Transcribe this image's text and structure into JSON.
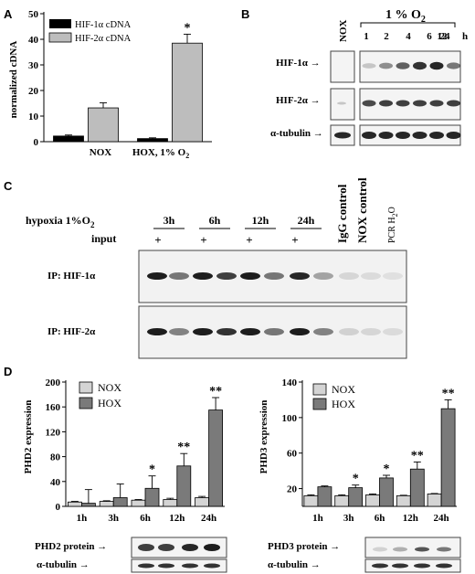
{
  "panelA": {
    "label": "A",
    "ylabel": "normalized cDNA",
    "legend": [
      "HIF-1α cDNA",
      "HIF-2α cDNA"
    ],
    "colors": {
      "hif1": "#000000",
      "hif2": "#bdbdbd"
    },
    "significance": "*"
  },
  "panelB": {
    "label": "B",
    "nox": "NOX",
    "condition": "1 % O",
    "condition_sub": "2",
    "timepoints": [
      "1",
      "2",
      "4",
      "6",
      "12",
      "24"
    ],
    "unit": "h",
    "rows": [
      "HIF-1α →",
      "HIF-2α →",
      "α-tubulin →"
    ],
    "intensity_hif1": [
      0.2,
      0.45,
      0.65,
      0.85,
      0.9,
      0.55
    ],
    "intensity_hif2": [
      0.75,
      0.8,
      0.8,
      0.8,
      0.8,
      0.8
    ],
    "intensity_tub": [
      0.9,
      0.9,
      0.9,
      0.9,
      0.9,
      0.9
    ]
  },
  "panelC": {
    "label": "C",
    "hypoxia": "hypoxia 1%O",
    "hypoxia_sub": "2",
    "times": [
      "3h",
      "6h",
      "12h",
      "24h"
    ],
    "input_label": "input",
    "plus": "+",
    "controls": [
      "IgG control",
      "NOX control"
    ],
    "pcr": "PCR H",
    "pcr_sub": "2",
    "pcr_tail": "O",
    "ip_labels": [
      "IP: HIF-1α",
      "IP: HIF-2α"
    ]
  },
  "panelD": {
    "label": "D",
    "legend": [
      "NOX",
      "HOX"
    ],
    "colors": {
      "nox": "#d4d4d4",
      "hox": "#7a7a7a"
    },
    "timepoints": [
      "1h",
      "3h",
      "6h",
      "12h",
      "24h"
    ],
    "left": {
      "ylabel": "PHD2 expression",
      "protein": "PHD2 protein →",
      "tubulin": "α-tubulin →"
    },
    "right": {
      "ylabel": "PHD3 expression",
      "protein": "PHD3 protein →",
      "tubulin": "α-tubulin →"
    }
  },
  "chart_data": [
    {
      "type": "bar",
      "categories": [
        "NOX",
        "HOX, 1% O2"
      ],
      "series": [
        {
          "name": "HIF-1α cDNA",
          "values": [
            2.2,
            1.2
          ],
          "errors": [
            0.4,
            0.3
          ]
        },
        {
          "name": "HIF-2α cDNA",
          "values": [
            13.2,
            38.5
          ],
          "errors": [
            2.0,
            3.5
          ]
        }
      ],
      "ylabel": "normalized cDNA",
      "ylim": [
        0,
        50
      ],
      "yticks": [
        0,
        10,
        20,
        30,
        40,
        50
      ],
      "annotations": [
        {
          "category": "HOX, 1% O2",
          "series": "HIF-2α cDNA",
          "text": "*"
        }
      ]
    },
    {
      "type": "bar",
      "categories": [
        "1h",
        "3h",
        "6h",
        "12h",
        "24h"
      ],
      "series": [
        {
          "name": "NOX",
          "values": [
            7,
            8,
            10,
            11,
            14
          ],
          "errors": [
            1,
            1,
            1,
            2,
            2
          ]
        },
        {
          "name": "HOX",
          "values": [
            5,
            14,
            29,
            65,
            155
          ],
          "errors": [
            22,
            22,
            20,
            20,
            20
          ]
        }
      ],
      "ylabel": "PHD2 expression",
      "ylim": [
        0,
        200
      ],
      "yticks": [
        0,
        40,
        80,
        120,
        160,
        200
      ],
      "annotations": [
        {
          "category": "6h",
          "series": "HOX",
          "text": "*"
        },
        {
          "category": "12h",
          "series": "HOX",
          "text": "**"
        },
        {
          "category": "24h",
          "series": "HOX",
          "text": "**"
        }
      ]
    },
    {
      "type": "bar",
      "categories": [
        "1h",
        "3h",
        "6h",
        "12h",
        "24h"
      ],
      "series": [
        {
          "name": "NOX",
          "values": [
            12,
            12,
            13,
            12,
            14
          ],
          "errors": [
            1,
            1,
            1,
            0.5,
            0.5
          ]
        },
        {
          "name": "HOX",
          "values": [
            22,
            21,
            32,
            42,
            110
          ],
          "errors": [
            1,
            3,
            3,
            8,
            10
          ]
        }
      ],
      "ylabel": "PHD3 expression",
      "ylim": [
        0,
        140
      ],
      "yticks": [
        20,
        60,
        100,
        140
      ],
      "annotations": [
        {
          "category": "3h",
          "series": "HOX",
          "text": "*"
        },
        {
          "category": "6h",
          "series": "HOX",
          "text": "*"
        },
        {
          "category": "12h",
          "series": "HOX",
          "text": "**"
        },
        {
          "category": "24h",
          "series": "HOX",
          "text": "**"
        }
      ]
    }
  ]
}
